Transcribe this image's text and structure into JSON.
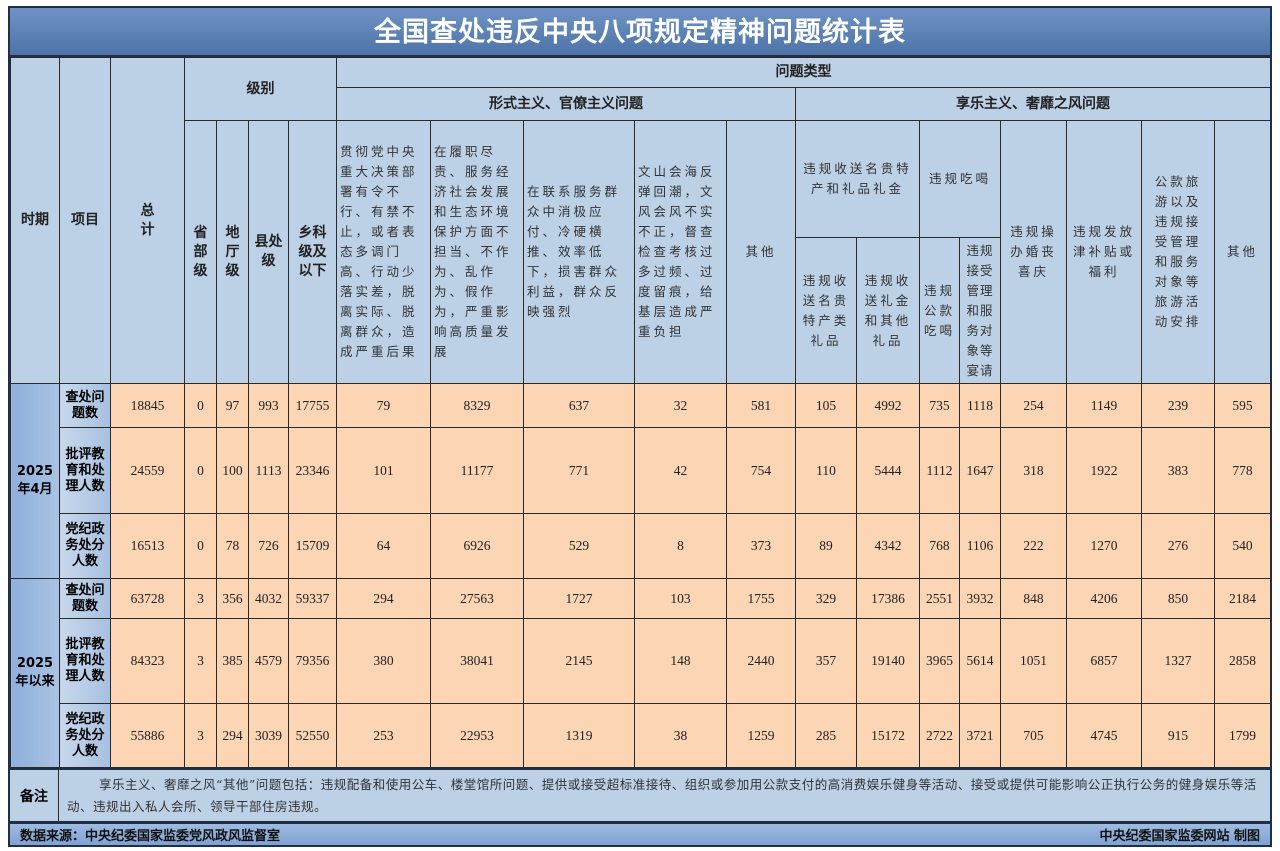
{
  "title": "全国查处违反中央八项规定精神问题统计表",
  "header": {
    "period": "时期",
    "item": "项目",
    "total": "总计",
    "level": "级别",
    "levels": [
      "省部级",
      "地厅级",
      "县处级",
      "乡科级及以下"
    ],
    "problem_type": "问题类型",
    "formalism_group": "形式主义、官僚主义问题",
    "formalism_cols": [
      "贯彻党中央重大决策部署有令不行、有禁不止，或者表态多调门高、行动少落实差，脱离实际、脱离群众，造成严重后果",
      "在履职尽责、服务经济社会发展和生态环境保护方面不担当、不作为、乱作为、假作为，严重影响高质量发展",
      "在联系服务群众中消极应付、冷硬横推、效率低下，损害群众利益，群众反映强烈",
      "文山会海反弹回潮，文风会风不实不正，督查检查考核过多过频、过度留痕，给基层造成严重负担",
      "其他"
    ],
    "hedonism_group": "享乐主义、奢靡之风问题",
    "gifts_group": "违规收送名贵特产和礼品礼金",
    "gifts_cols": [
      "违规收送名贵特产类礼品",
      "违规收送礼金和其他礼品"
    ],
    "dining_group": "违规吃喝",
    "dining_cols": [
      "违规公款吃喝",
      "违规接受管理和服务对象等宴请"
    ],
    "hedonism_cols": [
      "违规操办婚丧喜庆",
      "违规发放津补贴或福利",
      "公款旅游以及违规接受管理和服务对象等旅游活动安排",
      "其他"
    ]
  },
  "periods": [
    {
      "label": "2025年4月",
      "rows": [
        {
          "item": "查处问题数",
          "values": [
            "18845",
            "0",
            "97",
            "993",
            "17755",
            "79",
            "8329",
            "637",
            "32",
            "581",
            "105",
            "4992",
            "735",
            "1118",
            "254",
            "1149",
            "239",
            "595"
          ]
        },
        {
          "item": "批评教育和处理人数",
          "values": [
            "24559",
            "0",
            "100",
            "1113",
            "23346",
            "101",
            "11177",
            "771",
            "42",
            "754",
            "110",
            "5444",
            "1112",
            "1647",
            "318",
            "1922",
            "383",
            "778"
          ]
        },
        {
          "item": "党纪政务处分人数",
          "values": [
            "16513",
            "0",
            "78",
            "726",
            "15709",
            "64",
            "6926",
            "529",
            "8",
            "373",
            "89",
            "4342",
            "768",
            "1106",
            "222",
            "1270",
            "276",
            "540"
          ]
        }
      ]
    },
    {
      "label": "2025年以来",
      "rows": [
        {
          "item": "查处问题数",
          "values": [
            "63728",
            "3",
            "356",
            "4032",
            "59337",
            "294",
            "27563",
            "1727",
            "103",
            "1755",
            "329",
            "17386",
            "2551",
            "3932",
            "848",
            "4206",
            "850",
            "2184"
          ]
        },
        {
          "item": "批评教育和处理人数",
          "values": [
            "84323",
            "3",
            "385",
            "4579",
            "79356",
            "380",
            "38041",
            "2145",
            "148",
            "2440",
            "357",
            "19140",
            "3965",
            "5614",
            "1051",
            "6857",
            "1327",
            "2858"
          ]
        },
        {
          "item": "党纪政务处分人数",
          "values": [
            "55886",
            "3",
            "294",
            "3039",
            "52550",
            "253",
            "22953",
            "1319",
            "38",
            "1259",
            "285",
            "15172",
            "2722",
            "3721",
            "705",
            "4745",
            "915",
            "1799"
          ]
        }
      ]
    }
  ],
  "remark": {
    "label": "备注",
    "text": "享乐主义、奢靡之风“其他”问题包括：违规配备和使用公车、楼堂馆所问题、提供或接受超标准接待、组织或参加用公款支付的高消费娱乐健身等活动、接受或提供可能影响公正执行公务的健身娱乐等活动、违规出入私人会所、领导干部住房违规。"
  },
  "footer": {
    "source": "数据来源：中央纪委国家监委党风政风监督室",
    "credit": "中央纪委国家监委网站 制图"
  },
  "colors": {
    "title_bar": "#4d73a8",
    "header_bg": "#bcd0e6",
    "data_bg": "#fcd5b4",
    "period_bg": "#8fb0db"
  }
}
